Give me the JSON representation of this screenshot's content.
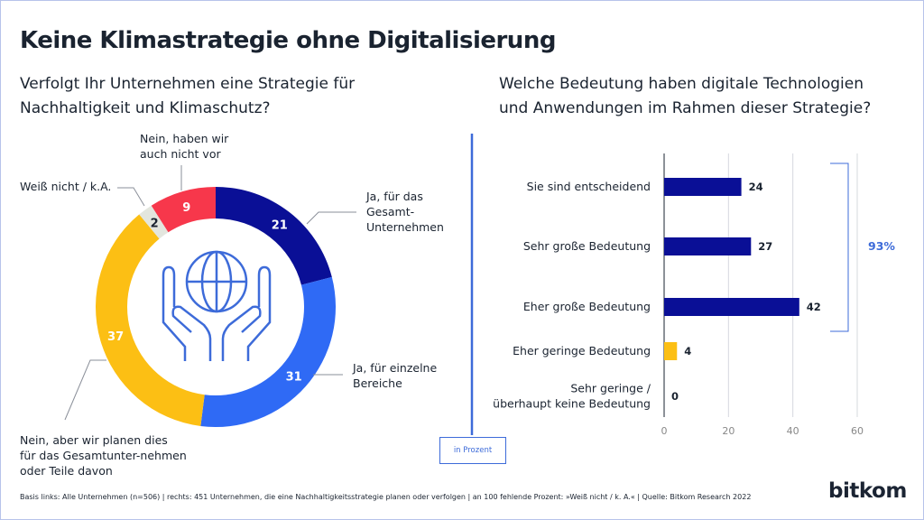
{
  "title": "Keine Klimastrategie ohne Digitalisierung",
  "left_question": "Verfolgt Ihr Unternehmen eine Strategie für Nachhaltigkeit und Klimaschutz?",
  "right_question": "Welche Bedeutung haben digitale Technologien und Anwendungen im Rahmen dieser Strategie?",
  "unit_note": "in Prozent",
  "footer": "Basis links: Alle Unternehmen (n=506) | rechts: 451 Unternehmen, die eine Nachhaltigkeitsstrategie planen oder verfolgen | an 100 fehlende Prozent: »Weiß nicht / k. A.« | Quelle: Bitkom Research 2022",
  "logo": "bitkom",
  "colors": {
    "navy": "#0a0f96",
    "blue": "#2f6af5",
    "yellow": "#fcbf14",
    "grey": "#e3e6de",
    "red": "#f7374b",
    "accent": "#3d6bd9"
  },
  "chart_data": [
    {
      "type": "pie",
      "donut": true,
      "center_icon": "hands-holding-globe-icon",
      "labels": [
        "Ja, für das Gesamt-Unternehmen",
        "Ja, für einzelne Bereiche",
        "Nein, aber wir planen dies für das Gesamtunter-nehmen oder Teile davon",
        "Weiß nicht / k.A.",
        "Nein, haben wir auch nicht vor"
      ],
      "values": [
        21,
        31,
        37,
        2,
        9
      ],
      "colors": [
        "#0a0f96",
        "#2f6af5",
        "#fcbf14",
        "#e3e6de",
        "#f7374b"
      ]
    },
    {
      "type": "bar",
      "orientation": "horizontal",
      "categories": [
        "Sie sind entscheidend",
        "Sehr große Bedeutung",
        "Eher große Bedeutung",
        "Eher geringe Bedeutung",
        "Sehr geringe / überhaupt keine Bedeutung"
      ],
      "values": [
        24,
        27,
        42,
        4,
        0
      ],
      "colors": [
        "#0a0f96",
        "#0a0f96",
        "#0a0f96",
        "#fcbf14",
        "#0a0f96"
      ],
      "xlim": [
        0,
        60
      ],
      "xticks": [
        0,
        20,
        40,
        60
      ],
      "grid": true,
      "bracket_label": "93%"
    }
  ]
}
